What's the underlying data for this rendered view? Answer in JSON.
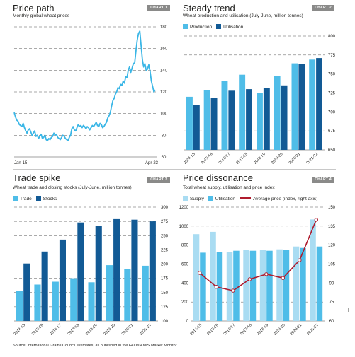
{
  "charts": [
    {
      "title": "Price path",
      "subtitle": "Monthly global wheat prices",
      "badge": "CHART 1",
      "chart_data": {
        "type": "line",
        "x_start_label": "Jan-15",
        "x_end_label": "Apr-23",
        "ylim": [
          60,
          180
        ],
        "yticks": [
          60,
          80,
          100,
          120,
          140,
          160,
          180
        ],
        "values": [
          101,
          97,
          94,
          93,
          90,
          89,
          88,
          91,
          87,
          84,
          82,
          85,
          86,
          83,
          80,
          82,
          84,
          79,
          80,
          77,
          79,
          81,
          77,
          78,
          80,
          76,
          75,
          77,
          76,
          78,
          79,
          82,
          80,
          81,
          78,
          77,
          76,
          78,
          80,
          79,
          77,
          76,
          75,
          78,
          80,
          86,
          88,
          85,
          84,
          87,
          90,
          88,
          89,
          87,
          89,
          88,
          86,
          88,
          87,
          85,
          87,
          89,
          88,
          90,
          92,
          89,
          88,
          91,
          90,
          87,
          88,
          90,
          92,
          96,
          98,
          101,
          107,
          112,
          114,
          118,
          120,
          124,
          123,
          127,
          126,
          130,
          128,
          134,
          133,
          140,
          143,
          138,
          142,
          146,
          147,
          158,
          168,
          174,
          176,
          163,
          150,
          143,
          146,
          140,
          141,
          145,
          139,
          130,
          125,
          120,
          122
        ]
      }
    },
    {
      "title": "Steady trend",
      "subtitle": "Wheat production and utilisation (July-June, million tonnes)",
      "badge": "CHART 2",
      "chart_data": {
        "type": "bar",
        "categories": [
          "2014-15",
          "2015-16",
          "2016-17",
          "2017-18",
          "2018-19",
          "2019-20",
          "2020-21",
          "2021-22"
        ],
        "series": [
          {
            "name": "Production",
            "color": "#4fbde8",
            "values": [
              720,
              729,
              741,
              749,
              725,
              747,
              764,
              769
            ]
          },
          {
            "name": "Utilisation",
            "color": "#125a95",
            "values": [
              709,
              718,
              728,
              730,
              732,
              735,
              763,
              771
            ]
          }
        ],
        "ylim": [
          650,
          800
        ],
        "yticks": [
          650,
          675,
          700,
          725,
          750,
          775,
          800
        ]
      }
    },
    {
      "title": "Trade spike",
      "subtitle": "Wheat trade and closing stocks (July-June, million tonnes)",
      "badge": "CHART 3",
      "chart_data": {
        "type": "bar",
        "categories": [
          "2014-15",
          "2015-16",
          "2016-17",
          "2017-18",
          "2018-19",
          "2019-20",
          "2020-21",
          "2021-22"
        ],
        "series": [
          {
            "name": "Trade",
            "color": "#4fbde8",
            "values": [
              153,
              164,
              169,
              175,
              168,
              198,
              191,
              197
            ]
          },
          {
            "name": "Stocks",
            "color": "#125a95",
            "values": [
              201,
              222,
              243,
              273,
              267,
              279,
              278,
              275
            ]
          }
        ],
        "ylim": [
          100,
          300
        ],
        "yticks": [
          100,
          125,
          150,
          175,
          200,
          225,
          250,
          275,
          300
        ]
      }
    },
    {
      "title": "Price dissonance",
      "subtitle": "Total wheat supply, utilisation and price index",
      "badge": "CHART 4",
      "chart_data": {
        "type": "bar",
        "categories": [
          "2014-15",
          "2015-16",
          "2016-17",
          "2017-18",
          "2018-19",
          "2019-20",
          "2020-21",
          "2021-22"
        ],
        "series": [
          {
            "name": "Supply",
            "color": "#a9dcf2",
            "values": [
              915,
              940,
              725,
              745,
              745,
              755,
              785,
              1070
            ]
          },
          {
            "name": "Utilisation",
            "color": "#4fbde8",
            "values": [
              720,
              730,
              740,
              740,
              740,
              745,
              770,
              785
            ]
          },
          {
            "name": "Average price (index, right axis)",
            "color": "#b01c2e",
            "type": "line",
            "axis": "right",
            "values": [
              98,
              87,
              84,
              93,
              97,
              94,
              108,
              140
            ]
          }
        ],
        "ylim": [
          0,
          1200
        ],
        "yticks": [
          0,
          200,
          400,
          600,
          800,
          1000,
          1200
        ],
        "y2lim": [
          60,
          150
        ],
        "y2ticks": [
          60,
          75,
          90,
          105,
          120,
          135,
          150
        ]
      }
    }
  ],
  "source": "Source: International Grains Council estimates, as published in the FAO's AMIS Market Monitor",
  "cursor_glyph": "+"
}
